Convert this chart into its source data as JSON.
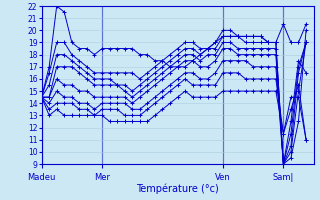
{
  "xlabel": "Température (°c)",
  "ylim": [
    9,
    22
  ],
  "yticks": [
    9,
    10,
    11,
    12,
    13,
    14,
    15,
    16,
    17,
    18,
    19,
    20,
    21,
    22
  ],
  "bg_color": "#cce8f4",
  "grid_color": "#aacce0",
  "line_color": "#0000cc",
  "day_labels": [
    "Madeu",
    "Mer",
    "Ven",
    "Sam|"
  ],
  "day_positions": [
    0,
    48,
    144,
    192
  ],
  "xlim": [
    0,
    216
  ],
  "series": [
    {
      "x": [
        0,
        6,
        12,
        18,
        24,
        30,
        36,
        42,
        48,
        54,
        60,
        66,
        72,
        78,
        84,
        90,
        96,
        102,
        108,
        114,
        120,
        126,
        132,
        138,
        144,
        150,
        156,
        162,
        168,
        174,
        180,
        186,
        192,
        198,
        204,
        210
      ],
      "y": [
        14.5,
        17.0,
        22.0,
        21.5,
        19.0,
        18.5,
        18.5,
        18.0,
        18.5,
        18.5,
        18.5,
        18.5,
        18.5,
        18.0,
        18.0,
        17.5,
        17.5,
        17.0,
        17.0,
        17.0,
        17.5,
        18.0,
        18.5,
        19.0,
        19.5,
        19.5,
        19.5,
        19.5,
        19.5,
        19.5,
        19.0,
        19.0,
        20.5,
        19.0,
        19.0,
        20.5
      ]
    },
    {
      "x": [
        0,
        6,
        12,
        18,
        24,
        30,
        36,
        42,
        48,
        54,
        60,
        66,
        72,
        78,
        84,
        90,
        96,
        102,
        108,
        114,
        120,
        126,
        132,
        138,
        144,
        150,
        156,
        162,
        168,
        174,
        180,
        186,
        192,
        198,
        204,
        210
      ],
      "y": [
        14.5,
        16.5,
        19.0,
        19.0,
        18.0,
        17.5,
        17.0,
        16.5,
        16.5,
        16.5,
        16.5,
        16.5,
        16.5,
        16.0,
        16.5,
        17.0,
        17.5,
        18.0,
        18.5,
        19.0,
        19.0,
        18.5,
        18.5,
        19.0,
        20.0,
        20.0,
        19.5,
        19.5,
        19.5,
        19.5,
        19.0,
        19.0,
        9.0,
        9.5,
        12.5,
        20.0
      ]
    },
    {
      "x": [
        0,
        6,
        12,
        18,
        24,
        30,
        36,
        42,
        48,
        54,
        60,
        66,
        72,
        78,
        84,
        90,
        96,
        102,
        108,
        114,
        120,
        126,
        132,
        138,
        144,
        150,
        156,
        162,
        168,
        174,
        180,
        186,
        192,
        198,
        204,
        210
      ],
      "y": [
        14.5,
        15.5,
        18.0,
        18.0,
        17.5,
        17.0,
        16.5,
        16.0,
        16.0,
        16.0,
        15.5,
        15.5,
        15.0,
        15.5,
        16.0,
        16.5,
        17.0,
        17.5,
        18.0,
        18.5,
        18.5,
        18.0,
        18.5,
        18.5,
        19.5,
        19.5,
        19.5,
        19.0,
        19.0,
        19.0,
        19.0,
        19.0,
        9.0,
        10.0,
        15.0,
        19.0
      ]
    },
    {
      "x": [
        0,
        6,
        12,
        18,
        24,
        30,
        36,
        42,
        48,
        54,
        60,
        66,
        72,
        78,
        84,
        90,
        96,
        102,
        108,
        114,
        120,
        126,
        132,
        138,
        144,
        150,
        156,
        162,
        168,
        174,
        180,
        186,
        192,
        198,
        204,
        210
      ],
      "y": [
        14.5,
        14.5,
        17.0,
        17.0,
        17.0,
        16.5,
        16.0,
        15.5,
        15.5,
        15.5,
        15.5,
        15.0,
        14.5,
        15.0,
        15.5,
        16.0,
        16.5,
        17.0,
        17.5,
        18.0,
        18.0,
        17.5,
        18.0,
        18.0,
        19.0,
        19.0,
        18.5,
        18.5,
        18.5,
        18.5,
        18.5,
        18.5,
        9.0,
        10.5,
        16.5,
        19.0
      ]
    },
    {
      "x": [
        0,
        6,
        12,
        18,
        24,
        30,
        36,
        42,
        48,
        54,
        60,
        66,
        72,
        78,
        84,
        90,
        96,
        102,
        108,
        114,
        120,
        126,
        132,
        138,
        144,
        150,
        156,
        162,
        168,
        174,
        180,
        186,
        192,
        198,
        204,
        210
      ],
      "y": [
        14.5,
        14.5,
        16.0,
        15.5,
        15.5,
        15.0,
        15.0,
        14.5,
        14.5,
        14.5,
        14.5,
        14.5,
        14.0,
        14.5,
        15.0,
        15.5,
        16.0,
        16.5,
        17.0,
        17.5,
        17.5,
        17.0,
        17.0,
        17.5,
        18.5,
        18.5,
        18.0,
        18.0,
        18.0,
        18.0,
        18.0,
        18.0,
        9.0,
        11.5,
        17.0,
        19.0
      ]
    },
    {
      "x": [
        0,
        6,
        12,
        18,
        24,
        30,
        36,
        42,
        48,
        54,
        60,
        66,
        72,
        78,
        84,
        90,
        96,
        102,
        108,
        114,
        120,
        126,
        132,
        138,
        144,
        150,
        156,
        162,
        168,
        174,
        180,
        186,
        192,
        198,
        204,
        210
      ],
      "y": [
        14.5,
        14.0,
        15.0,
        14.5,
        14.5,
        14.0,
        14.0,
        13.5,
        14.0,
        14.0,
        14.0,
        14.0,
        13.5,
        13.5,
        14.0,
        14.5,
        15.0,
        15.5,
        16.0,
        16.5,
        16.5,
        16.0,
        16.0,
        16.5,
        17.5,
        17.5,
        17.5,
        17.5,
        17.0,
        17.0,
        17.0,
        17.0,
        9.0,
        12.5,
        17.5,
        16.5
      ]
    },
    {
      "x": [
        0,
        6,
        12,
        18,
        24,
        30,
        36,
        42,
        48,
        54,
        60,
        66,
        72,
        78,
        84,
        90,
        96,
        102,
        108,
        114,
        120,
        126,
        132,
        138,
        144,
        150,
        156,
        162,
        168,
        174,
        180,
        186,
        192,
        198,
        204,
        210
      ],
      "y": [
        14.5,
        13.5,
        14.0,
        14.0,
        14.0,
        13.5,
        13.5,
        13.0,
        13.5,
        13.5,
        13.5,
        13.0,
        13.0,
        13.0,
        13.5,
        14.0,
        14.5,
        15.0,
        15.5,
        16.0,
        15.5,
        15.5,
        15.5,
        15.5,
        16.5,
        16.5,
        16.5,
        16.0,
        16.0,
        16.0,
        16.0,
        16.0,
        11.5,
        13.5,
        15.5,
        11.0
      ]
    },
    {
      "x": [
        0,
        6,
        12,
        18,
        24,
        30,
        36,
        42,
        48,
        54,
        60,
        66,
        72,
        78,
        84,
        90,
        96,
        102,
        108,
        114,
        120,
        126,
        132,
        138,
        144,
        150,
        156,
        162,
        168,
        174,
        180,
        186,
        192,
        198,
        204,
        210
      ],
      "y": [
        14.5,
        13.0,
        13.5,
        13.0,
        13.0,
        13.0,
        13.0,
        13.0,
        13.0,
        12.5,
        12.5,
        12.5,
        12.5,
        12.5,
        12.5,
        13.0,
        13.5,
        14.0,
        14.5,
        15.0,
        14.5,
        14.5,
        14.5,
        14.5,
        15.0,
        15.0,
        15.0,
        15.0,
        15.0,
        15.0,
        15.0,
        15.0,
        11.5,
        14.5,
        14.5,
        11.0
      ]
    }
  ]
}
